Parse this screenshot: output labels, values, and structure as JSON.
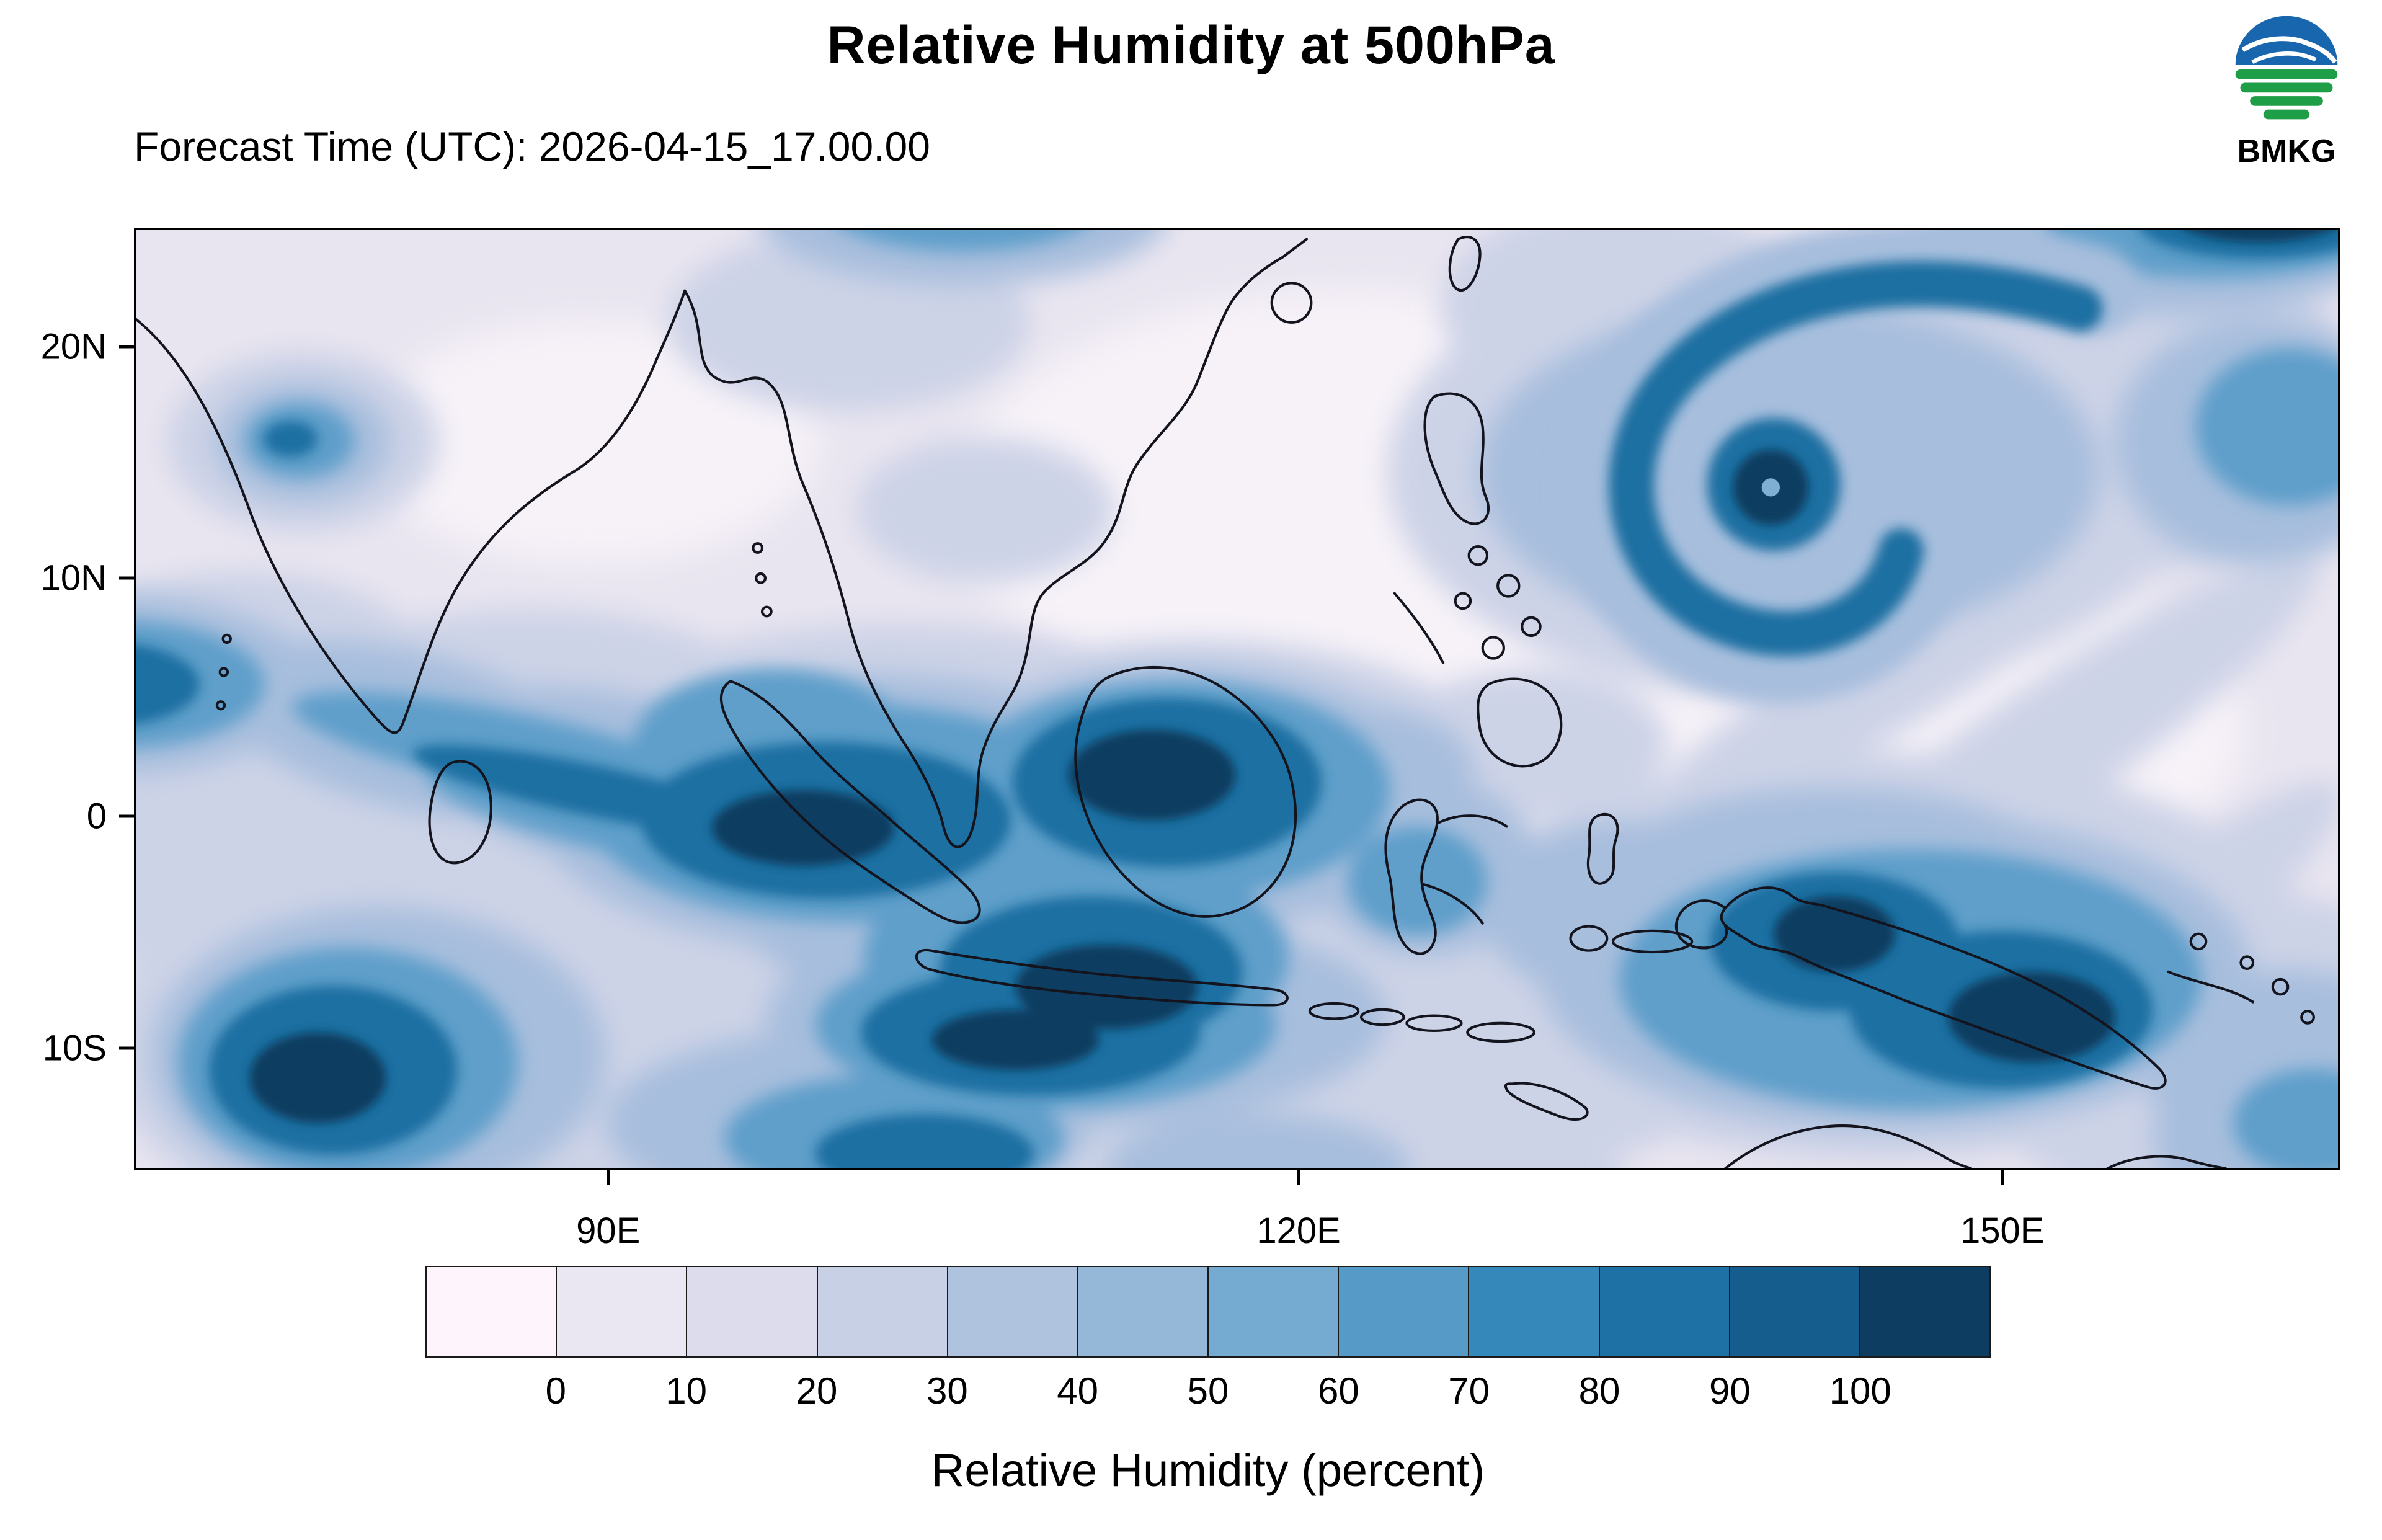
{
  "header": {
    "title": "Relative Humidity at 500hPa",
    "forecast_time": "Forecast Time (UTC): 2026-04-15_17.00.00",
    "logo_text": "BMKG"
  },
  "map": {
    "y_ticks": [
      {
        "label": "20N",
        "pos": 12.6
      },
      {
        "label": "10N",
        "pos": 37.1
      },
      {
        "label": "0",
        "pos": 62.4
      },
      {
        "label": "10S",
        "pos": 87.0
      }
    ],
    "x_ticks": [
      {
        "label": "90E",
        "pos": 21.5
      },
      {
        "label": "120E",
        "pos": 52.8
      },
      {
        "label": "150E",
        "pos": 84.7
      }
    ]
  },
  "colorbar": {
    "levels": [
      "0",
      "10",
      "20",
      "30",
      "40",
      "50",
      "60",
      "70",
      "80",
      "90",
      "100"
    ],
    "colors": [
      "#fdf5fb",
      "#ebe7f2",
      "#dcdcec",
      "#c8d0e5",
      "#b0c3de",
      "#95b8d8",
      "#76abd1",
      "#569bc8",
      "#3488ba",
      "#1d71a5",
      "#155d8d",
      "#0d3d60"
    ],
    "caption": "Relative Humidity (percent)"
  },
  "chart_data": {
    "type": "heatmap",
    "title": "Relative Humidity at 500hPa",
    "subtitle": "Forecast Time (UTC): 2026-04-15_17.00.00",
    "agency": "BMKG",
    "variable": "Relative Humidity (percent)",
    "x_axis": {
      "tick_labels": [
        "90E",
        "120E",
        "150E"
      ],
      "range_estimate": [
        "70E",
        "165E"
      ]
    },
    "y_axis": {
      "tick_labels": [
        "20N",
        "10N",
        "0",
        "10S"
      ],
      "range_estimate": [
        "15S",
        "25N"
      ]
    },
    "legend_position": "bottom",
    "grid": false,
    "colorbar_levels": [
      0,
      10,
      20,
      30,
      40,
      50,
      60,
      70,
      80,
      90,
      100
    ],
    "colorbar_colors": [
      "#fdf5fb",
      "#ebe7f2",
      "#dcdcec",
      "#c8d0e5",
      "#b0c3de",
      "#95b8d8",
      "#76abd1",
      "#569bc8",
      "#3488ba",
      "#1d71a5",
      "#155d8d",
      "#0d3d60"
    ]
  }
}
